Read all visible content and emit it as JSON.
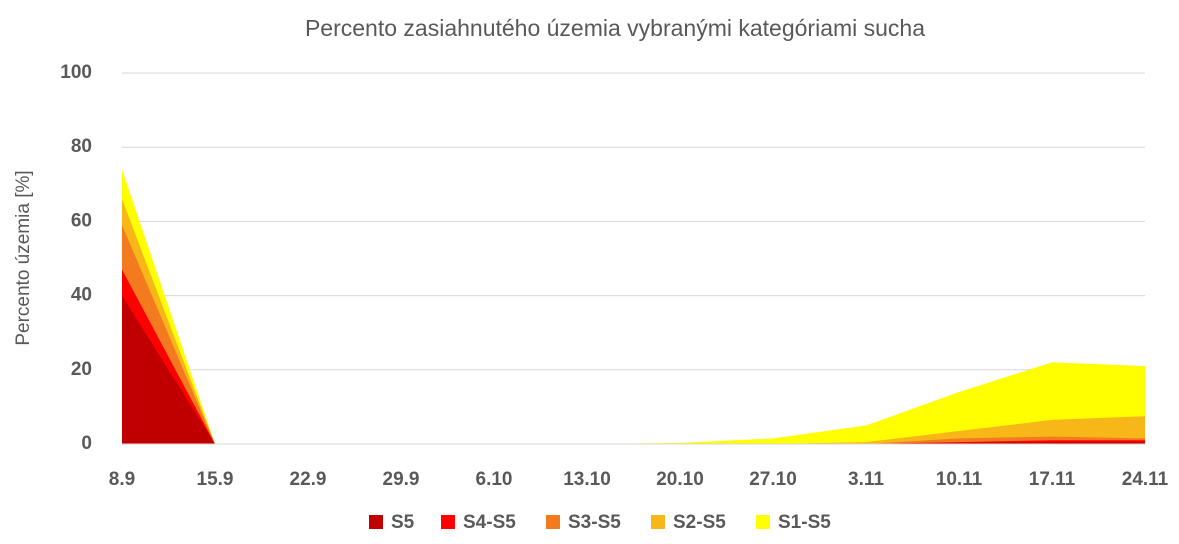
{
  "chart_data": {
    "type": "area",
    "title": "Percento zasiahnutého územia vybranými kategóriami sucha",
    "y_label": "Percento územia  [%]",
    "categories": [
      "8.9",
      "15.9",
      "22.9",
      "29.9",
      "6.10",
      "13.10",
      "20.10",
      "27.10",
      "3.11",
      "10.11",
      "17.11",
      "24.11"
    ],
    "series": [
      {
        "name": "S5",
        "color": "#c00000",
        "values": [
          40,
          0,
          0,
          0,
          0,
          0,
          0,
          0,
          0,
          0.3,
          0.5,
          0.5
        ]
      },
      {
        "name": "S4-S5",
        "color": "#ff0000",
        "values": [
          47,
          0,
          0,
          0,
          0,
          0,
          0,
          0,
          0,
          0.5,
          1,
          1
        ]
      },
      {
        "name": "S3-S5",
        "color": "#f47a1f",
        "values": [
          59,
          0,
          0,
          0,
          0,
          0,
          0,
          0,
          0,
          1.5,
          2,
          1.5
        ]
      },
      {
        "name": "S2-S5",
        "color": "#f7b718",
        "values": [
          66,
          0,
          0,
          0,
          0,
          0,
          0,
          0,
          0.5,
          3.5,
          6.5,
          7.5
        ]
      },
      {
        "name": "S1-S5",
        "color": "#ffff00",
        "values": [
          74,
          0,
          0,
          0,
          0,
          0,
          0.3,
          1.5,
          5,
          14,
          22,
          21
        ]
      }
    ],
    "ylim": [
      0,
      100
    ],
    "yticks": [
      0,
      20,
      40,
      60,
      80,
      100
    ],
    "grid": true,
    "legend": "bottom"
  }
}
